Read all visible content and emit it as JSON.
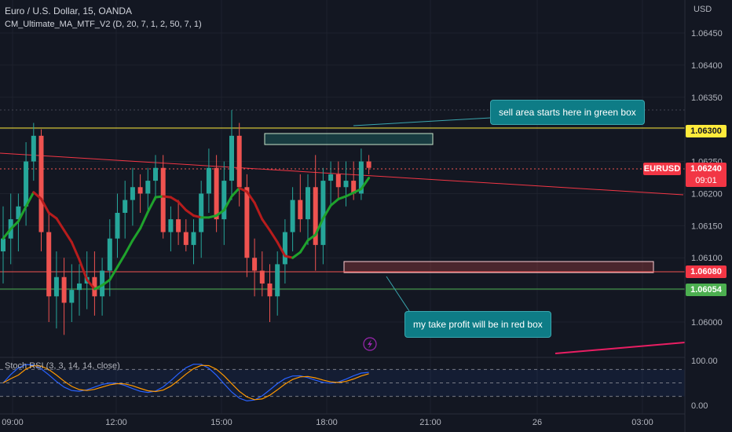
{
  "header": {
    "symbol_line": "Euro / U.S. Dollar, 15, OANDA",
    "indicator_line": "CM_Ultimate_MA_MTF_V2 (D, 20, 7, 1, 2, 50, 7, 1)",
    "stoch_label": "Stoch RSI (3, 3, 14, 14, close)"
  },
  "axis": {
    "currency": "USD",
    "price_ticks": [
      "1.06450",
      "1.06400",
      "1.06350",
      "1.06300",
      "1.06250",
      "1.06200",
      "1.06150",
      "1.06100",
      "1.06050",
      "1.06000"
    ],
    "time_ticks": [
      "09:00",
      "12:00",
      "15:00",
      "18:00",
      "21:00",
      "26",
      "03:00"
    ],
    "osc_ticks": [
      "100.00",
      "0.00"
    ]
  },
  "price_tags": {
    "yellow": "1.06300",
    "current_symbol": "EURUSD",
    "current_price": "1.06240",
    "countdown": "09:01",
    "red": "1.06080",
    "green": "1.06054"
  },
  "annotations": {
    "sell": "sell area starts here in green box",
    "tp": "my take profit will be in red box"
  },
  "colors": {
    "background": "#131722",
    "up": "#26a69a",
    "down": "#ef5350",
    "yellow_line": "#ffeb3b",
    "callout": "#0e7c86",
    "ma_green": "#1fa32c",
    "ma_red": "#b71c1c",
    "stoch_k": "#2962ff",
    "stoch_d": "#ff9800"
  },
  "chart_data": {
    "type": "candlestick",
    "interval": "15m",
    "price_range": [
      1.0597,
      1.06475
    ],
    "levels": {
      "yellow": 1.063,
      "red": 1.0608,
      "green": 1.06054
    },
    "candles": [
      [
        1.0611,
        1.0618,
        1.0606,
        1.0613
      ],
      [
        1.0613,
        1.062,
        1.0609,
        1.0616
      ],
      [
        1.0616,
        1.062,
        1.0611,
        1.0618
      ],
      [
        1.0618,
        1.0628,
        1.0615,
        1.0625
      ],
      [
        1.0625,
        1.0631,
        1.0622,
        1.0629
      ],
      [
        1.0629,
        1.063,
        1.0611,
        1.0614
      ],
      [
        1.0614,
        1.0617,
        1.06,
        1.0604
      ],
      [
        1.0604,
        1.0611,
        1.0599,
        1.0607
      ],
      [
        1.0607,
        1.061,
        1.0598,
        1.0603
      ],
      [
        1.0603,
        1.0609,
        1.06,
        1.0605
      ],
      [
        1.0605,
        1.0609,
        1.0601,
        1.0606
      ],
      [
        1.0606,
        1.0611,
        1.0602,
        1.0607
      ],
      [
        1.0607,
        1.0611,
        1.0601,
        1.0604
      ],
      [
        1.0604,
        1.061,
        1.0601,
        1.0608
      ],
      [
        1.0608,
        1.0616,
        1.0604,
        1.0613
      ],
      [
        1.0613,
        1.062,
        1.061,
        1.0617
      ],
      [
        1.0617,
        1.0622,
        1.0613,
        1.0619
      ],
      [
        1.0619,
        1.0624,
        1.0615,
        1.0621
      ],
      [
        1.0621,
        1.0623,
        1.0617,
        1.062
      ],
      [
        1.062,
        1.0624,
        1.0617,
        1.0622
      ],
      [
        1.0622,
        1.0626,
        1.0619,
        1.0624
      ],
      [
        1.0624,
        1.0626,
        1.0613,
        1.0614
      ],
      [
        1.0614,
        1.0618,
        1.0611,
        1.0616
      ],
      [
        1.0616,
        1.0619,
        1.0612,
        1.0614
      ],
      [
        1.0614,
        1.0616,
        1.0611,
        1.0612
      ],
      [
        1.0612,
        1.0616,
        1.0609,
        1.0614
      ],
      [
        1.0614,
        1.0622,
        1.061,
        1.062
      ],
      [
        1.062,
        1.0627,
        1.0617,
        1.0624
      ],
      [
        1.0624,
        1.0626,
        1.0614,
        1.0616
      ],
      [
        1.0616,
        1.0625,
        1.0612,
        1.0622
      ],
      [
        1.0622,
        1.0633,
        1.0619,
        1.0629
      ],
      [
        1.0629,
        1.0631,
        1.0618,
        1.0621
      ],
      [
        1.0621,
        1.0623,
        1.0607,
        1.061
      ],
      [
        1.061,
        1.0613,
        1.0604,
        1.0608
      ],
      [
        1.0608,
        1.0611,
        1.0604,
        1.0606
      ],
      [
        1.0606,
        1.0609,
        1.06,
        1.0604
      ],
      [
        1.0604,
        1.0611,
        1.0601,
        1.0609
      ],
      [
        1.0609,
        1.0616,
        1.0606,
        1.0614
      ],
      [
        1.0614,
        1.0621,
        1.0611,
        1.0619
      ],
      [
        1.0619,
        1.0623,
        1.0614,
        1.0616
      ],
      [
        1.0616,
        1.0623,
        1.0612,
        1.0621
      ],
      [
        1.0621,
        1.0626,
        1.0608,
        1.0612
      ],
      [
        1.0612,
        1.0624,
        1.0609,
        1.0622
      ],
      [
        1.0622,
        1.0625,
        1.0618,
        1.0623
      ],
      [
        1.0623,
        1.0625,
        1.0619,
        1.0621
      ],
      [
        1.0621,
        1.0625,
        1.0618,
        1.0622
      ],
      [
        1.0622,
        1.0625,
        1.0619,
        1.062
      ],
      [
        1.062,
        1.0627,
        1.0619,
        1.0625
      ],
      [
        1.0625,
        1.0626,
        1.0623,
        1.0624
      ]
    ]
  }
}
